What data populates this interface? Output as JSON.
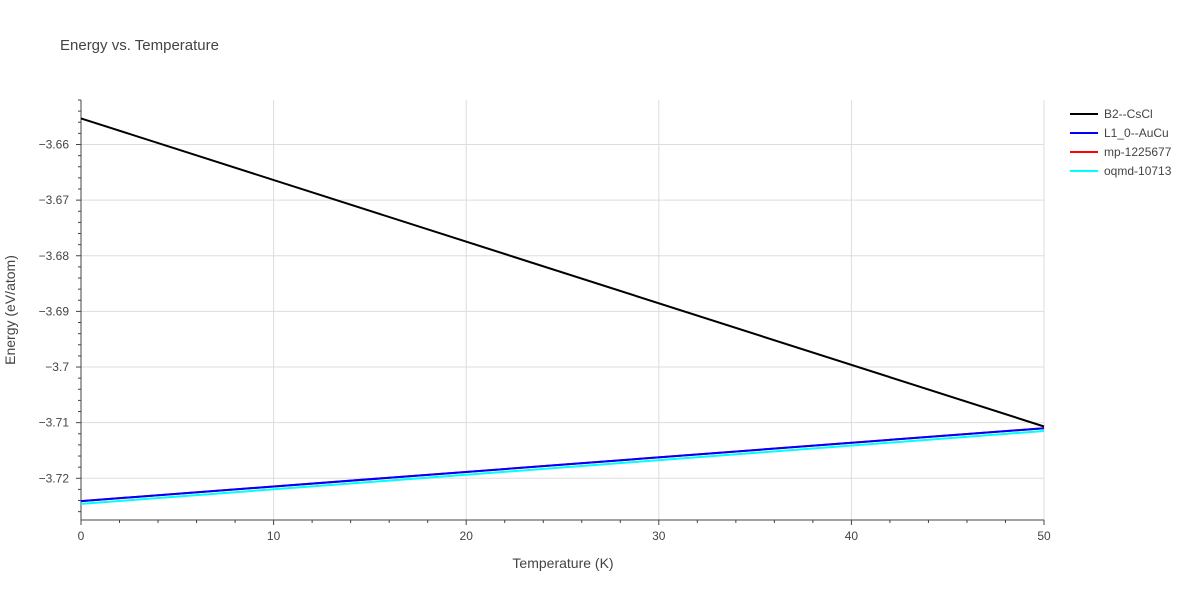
{
  "chart_data": {
    "type": "line",
    "title": "Energy vs. Temperature",
    "xlabel": "Temperature (K)",
    "ylabel": "Energy (eV/atom)",
    "xlim": [
      0,
      50
    ],
    "ylim": [
      -3.7275,
      -3.652
    ],
    "x_ticks": [
      0,
      10,
      20,
      30,
      40,
      50
    ],
    "x_tick_labels": [
      "0",
      "10",
      "20",
      "30",
      "40",
      "50"
    ],
    "y_ticks": [
      -3.72,
      -3.71,
      -3.7,
      -3.69,
      -3.68,
      -3.67,
      -3.66
    ],
    "y_tick_labels": [
      "−3.72",
      "−3.71",
      "−3.7",
      "−3.69",
      "−3.68",
      "−3.67",
      "−3.66"
    ],
    "grid": true,
    "legend_position": "top-right",
    "series": [
      {
        "name": "B2--CsCl",
        "color": "#000000",
        "x": [
          0,
          50
        ],
        "y": [
          -3.6553,
          -3.7107
        ]
      },
      {
        "name": "L1_0--AuCu",
        "color": "#0000ff",
        "x": [
          0,
          50
        ],
        "y": [
          -3.7241,
          -3.711
        ]
      },
      {
        "name": "mp-1225677",
        "color": "#ff0000",
        "x": [
          0,
          50
        ],
        "y": [
          -3.7241,
          -3.711
        ]
      },
      {
        "name": "oqmd-10713",
        "color": "#00ffff",
        "x": [
          0,
          50
        ],
        "y": [
          -3.7246,
          -3.7115
        ]
      }
    ]
  }
}
